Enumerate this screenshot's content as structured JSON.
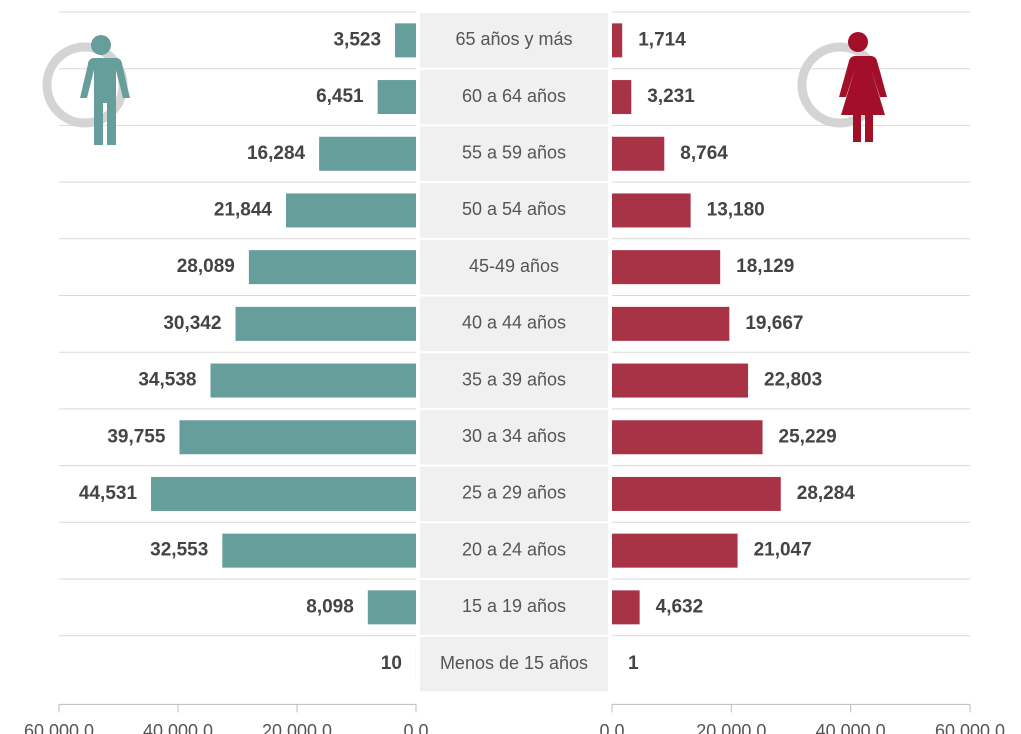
{
  "chart_data": {
    "type": "bar",
    "orientation": "horizontal",
    "categories": [
      "65 años  y más",
      "60 a 64 años",
      "55 a 59 años",
      "50 a 54 años",
      "45-49 años",
      "40 a 44 años",
      "35 a 39 años",
      "30 a 34 años",
      "25 a 29 años",
      "20 a 24 años",
      "15 a 19 años",
      "Menos de 15 años"
    ],
    "series": [
      {
        "color": "#669e9b",
        "side": "left",
        "values": [
          3523,
          6451,
          16284,
          21844,
          28089,
          30342,
          34538,
          39755,
          44531,
          32553,
          8098,
          10
        ],
        "value_labels": [
          "3,523",
          "6,451",
          "16,284",
          "21,844",
          "28,089",
          "30,342",
          "34,538",
          "39,755",
          "44,531",
          "32,553",
          "8,098",
          "10"
        ]
      },
      {
        "color": "#a83347",
        "side": "right",
        "values": [
          1714,
          3231,
          8764,
          13180,
          18129,
          19667,
          22803,
          25229,
          28284,
          21047,
          4632,
          1
        ],
        "value_labels": [
          "1,714",
          "3,231",
          "8,764",
          "13,180",
          "18,129",
          "19,667",
          "22,803",
          "25,229",
          "28,284",
          "21,047",
          "4,632",
          "1"
        ]
      }
    ],
    "xlim": [
      0,
      60000
    ],
    "xticks": [
      {
        "value": 0,
        "label": "0.0"
      },
      {
        "value": 20000,
        "label": "20,000.0"
      },
      {
        "value": 40000,
        "label": "40,000.0"
      },
      {
        "value": 60000,
        "label": "60,000.0"
      }
    ],
    "grid": true
  }
}
